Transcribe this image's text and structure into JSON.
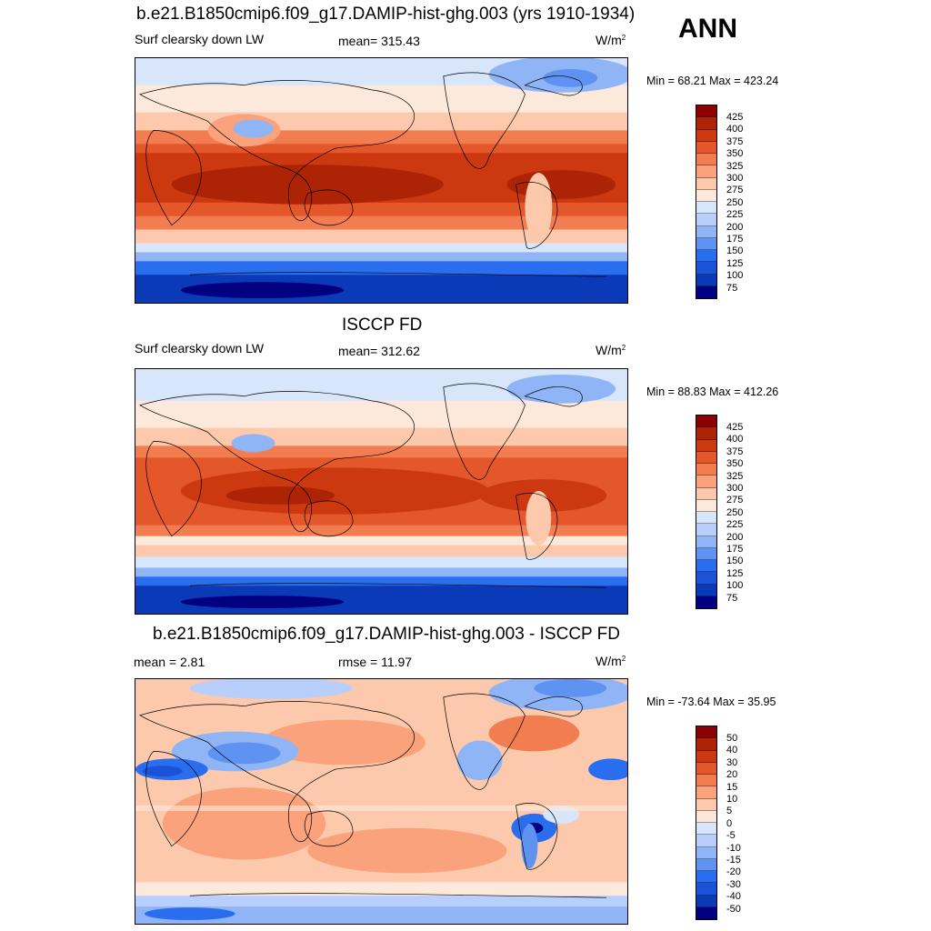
{
  "season_label": "ANN",
  "colors": {
    "abs": [
      "#000080",
      "#0a3ab8",
      "#1a53d8",
      "#2a6ef0",
      "#5e93f2",
      "#8fb5f6",
      "#b7cffa",
      "#d8e6fc",
      "#fde9db",
      "#fcc9ac",
      "#f9a27b",
      "#f27d50",
      "#e4572a",
      "#cc3810",
      "#ac2405",
      "#8b0000"
    ],
    "diff": [
      "#000080",
      "#0a3ab8",
      "#1a53d8",
      "#2a6ef0",
      "#5e93f2",
      "#8fb5f6",
      "#b7cffa",
      "#d8e6fc",
      "#fbe6da",
      "#fcc9ac",
      "#f9a27b",
      "#f27d50",
      "#e4572a",
      "#cc3810",
      "#ac2405",
      "#8b0000"
    ]
  },
  "panels": [
    {
      "title": "b.e21.B1850cmip6.f09_g17.DAMIP-hist-ghg.003 (yrs 1910-1934)",
      "left_label": "Surf clearsky down LW",
      "center_label": "mean= 315.43",
      "units": "W/m",
      "units_sup": "2",
      "minmax": "Min =  68.21 Max = 423.24",
      "kind": "abs",
      "ticks": [
        "425",
        "400",
        "375",
        "350",
        "325",
        "300",
        "275",
        "250",
        "225",
        "200",
        "175",
        "150",
        "125",
        "100",
        "75"
      ]
    },
    {
      "title": "ISCCP FD",
      "left_label": "Surf clearsky down LW",
      "center_label": "mean= 312.62",
      "units": "W/m",
      "units_sup": "2",
      "minmax": "Min =  88.83 Max = 412.26",
      "kind": "abs",
      "ticks": [
        "425",
        "400",
        "375",
        "350",
        "325",
        "300",
        "275",
        "250",
        "225",
        "200",
        "175",
        "150",
        "125",
        "100",
        "75"
      ]
    },
    {
      "title": "b.e21.B1850cmip6.f09_g17.DAMIP-hist-ghg.003 - ISCCP FD",
      "left_label": "mean =   2.81",
      "center_label": "rmse =   11.97",
      "units": "W/m",
      "units_sup": "2",
      "minmax": "Min = -73.64 Max =  35.95",
      "kind": "diff",
      "ticks": [
        "50",
        "40",
        "30",
        "20",
        "15",
        "10",
        "5",
        "0",
        "-5",
        "-10",
        "-15",
        "-20",
        "-30",
        "-40",
        "-50"
      ]
    }
  ]
}
